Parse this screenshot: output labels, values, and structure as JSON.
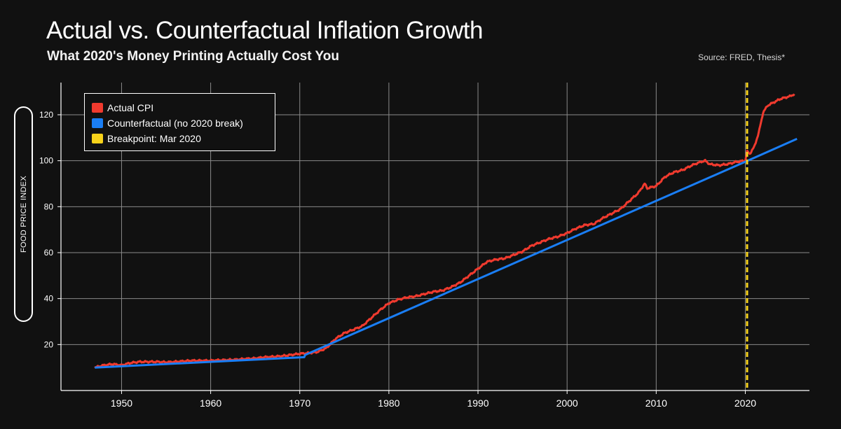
{
  "header": {
    "title": "Actual vs. Counterfactual Inflation Growth",
    "subtitle": "What 2020's Money Printing Actually Cost You",
    "source": "Source: FRED, Thesis*"
  },
  "colors": {
    "background": "#111111",
    "grid": "#8a8a8a",
    "actual": "#f03a2e",
    "counterfactual": "#1a7ef5",
    "breakpoint": "#f7d21a"
  },
  "chart_data": {
    "type": "line",
    "title": "Actual vs. Counterfactual Inflation Growth",
    "subtitle": "What 2020's Money Printing Actually Cost You",
    "xlabel": "",
    "ylabel": "FOOD PRICE INDEX",
    "xlim": [
      1943.2,
      2027.2
    ],
    "ylim": [
      0,
      134
    ],
    "xticks": [
      1950,
      1960,
      1970,
      1980,
      1990,
      2000,
      2010,
      2020
    ],
    "yticks": [
      20,
      40,
      60,
      80,
      100,
      120
    ],
    "grid": true,
    "legend_position": "top-left",
    "legend": [
      "Actual CPI",
      "Counterfactual (no 2020 break)",
      "Breakpoint: Mar 2020"
    ],
    "series": [
      {
        "name": "Actual CPI",
        "x": [
          1947,
          1948,
          1949,
          1950,
          1951,
          1952,
          1953,
          1954,
          1955,
          1956,
          1957,
          1958,
          1959,
          1960,
          1961,
          1962,
          1963,
          1964,
          1965,
          1966,
          1967,
          1968,
          1969,
          1970,
          1971,
          1972,
          1973,
          1974,
          1975,
          1976,
          1977,
          1978,
          1979,
          1980,
          1981,
          1982,
          1983,
          1984,
          1985,
          1986,
          1987,
          1988,
          1989,
          1990,
          1991,
          1992,
          1993,
          1994,
          1995,
          1996,
          1997,
          1998,
          1999,
          2000,
          2001,
          2002,
          2003,
          2004,
          2005,
          2006,
          2007,
          2008,
          2008.7,
          2009,
          2010,
          2011,
          2012,
          2013,
          2014,
          2015,
          2015.5,
          2016,
          2017,
          2018,
          2019,
          2020,
          2020.2,
          2020.5,
          2021,
          2021.5,
          2022,
          2022.5,
          2023,
          2024,
          2025,
          2025.5
        ],
        "values": [
          10,
          11,
          11.5,
          11,
          12,
          12.5,
          12.5,
          12.5,
          12.3,
          12.5,
          12.8,
          13,
          13,
          13,
          13.2,
          13.3,
          13.5,
          13.8,
          14,
          14.5,
          14.7,
          15,
          15.5,
          16,
          16.3,
          16.8,
          18.5,
          22.5,
          25,
          26.5,
          28,
          31.5,
          35,
          38,
          39.5,
          40.5,
          41,
          42,
          43,
          43.5,
          45,
          47,
          50,
          53,
          56,
          57,
          57.5,
          59,
          60.5,
          63,
          64.5,
          66,
          67,
          68.5,
          70.5,
          72,
          72.5,
          75,
          77,
          79,
          82.5,
          86,
          90,
          88,
          89,
          93,
          95,
          96,
          98,
          99.5,
          100,
          98.5,
          98,
          98.5,
          99.5,
          100,
          104,
          103,
          106,
          112,
          121,
          124,
          125,
          127,
          128,
          129
        ]
      },
      {
        "name": "Counterfactual (no 2020 break)",
        "x": [
          1947,
          1970.5,
          1970.6,
          2020.2,
          2025.8
        ],
        "values": [
          10,
          14.5,
          15.5,
          99.9,
          109.5
        ]
      }
    ],
    "breakpoint": {
      "name": "Breakpoint: Mar 2020",
      "x": 2020.2
    }
  }
}
